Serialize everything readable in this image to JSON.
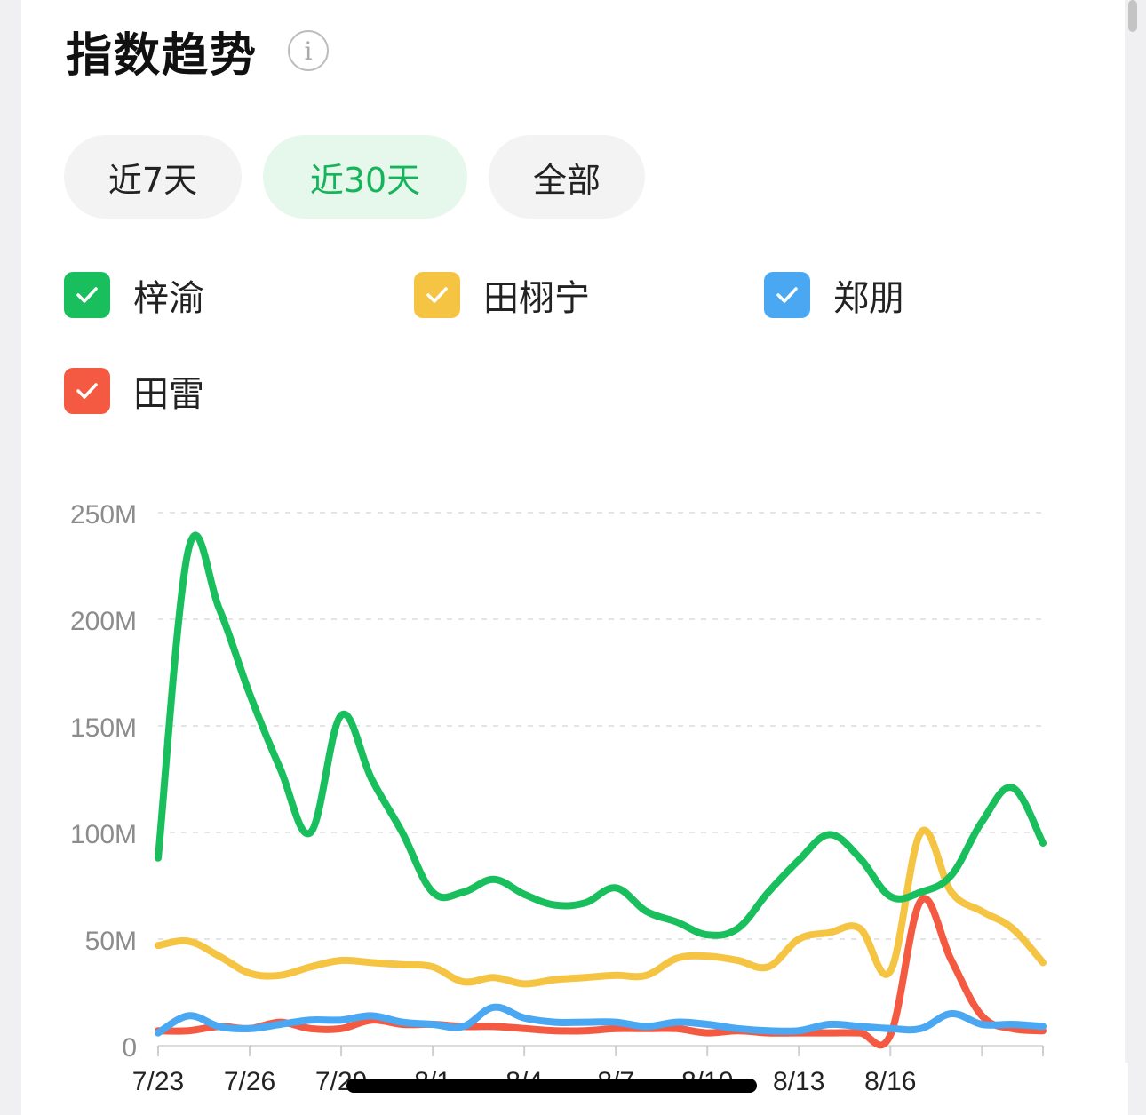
{
  "header": {
    "title": "指数趋势",
    "info_glyph": "i"
  },
  "tabs": [
    {
      "label": "近7天",
      "active": false
    },
    {
      "label": "近30天",
      "active": true
    },
    {
      "label": "全部",
      "active": false
    }
  ],
  "legend": [
    {
      "name": "梓渝",
      "color": "#19bf5c",
      "checked": true
    },
    {
      "name": "田栩宁",
      "color": "#f5c443",
      "checked": true
    },
    {
      "name": "郑朋",
      "color": "#4aa8f3",
      "checked": true
    },
    {
      "name": "田雷",
      "color": "#f45a42",
      "checked": true
    }
  ],
  "chart_data": {
    "type": "line",
    "title": "",
    "xlabel": "",
    "ylabel": "",
    "ylim": [
      0,
      250000000
    ],
    "y_ticks": [
      "0",
      "50M",
      "100M",
      "150M",
      "200M",
      "250M"
    ],
    "x_ticks": [
      "7/23",
      "7/26",
      "7/29",
      "8/1",
      "8/4",
      "8/7",
      "8/10",
      "8/13",
      "8/16"
    ],
    "x": [
      "7/23",
      "7/24",
      "7/25",
      "7/26",
      "7/27",
      "7/28",
      "7/29",
      "7/30",
      "7/31",
      "8/1",
      "8/2",
      "8/3",
      "8/4",
      "8/5",
      "8/6",
      "8/7",
      "8/8",
      "8/9",
      "8/10",
      "8/11",
      "8/12",
      "8/13",
      "8/14",
      "8/15",
      "8/16",
      "8/17",
      "8/18",
      "8/19",
      "8/20",
      "8/21"
    ],
    "grid": true,
    "series": [
      {
        "name": "梓渝",
        "color": "#19bf5c",
        "values": [
          88000000,
          233000000,
          205000000,
          165000000,
          130000000,
          100000000,
          155000000,
          125000000,
          100000000,
          72000000,
          72000000,
          78000000,
          71000000,
          66000000,
          67000000,
          74000000,
          63000000,
          58000000,
          52000000,
          55000000,
          72000000,
          87000000,
          99000000,
          88000000,
          70000000,
          72000000,
          80000000,
          105000000,
          121000000,
          95000000
        ]
      },
      {
        "name": "田栩宁",
        "color": "#f5c443",
        "values": [
          47000000,
          49000000,
          42000000,
          34000000,
          33000000,
          37000000,
          40000000,
          39000000,
          38000000,
          37000000,
          30000000,
          32000000,
          29000000,
          31000000,
          32000000,
          33000000,
          33000000,
          41000000,
          42000000,
          40000000,
          37000000,
          50000000,
          53000000,
          55000000,
          35000000,
          100000000,
          72000000,
          63000000,
          55000000,
          39000000
        ]
      },
      {
        "name": "郑朋",
        "color": "#4aa8f3",
        "values": [
          6000000,
          14000000,
          9000000,
          8000000,
          10000000,
          12000000,
          12000000,
          14000000,
          11000000,
          10000000,
          9000000,
          18000000,
          13000000,
          11000000,
          11000000,
          11000000,
          9000000,
          11000000,
          10000000,
          8000000,
          7000000,
          7000000,
          10000000,
          9000000,
          8000000,
          8000000,
          15000000,
          10000000,
          10000000,
          9000000
        ]
      },
      {
        "name": "田雷",
        "color": "#f45a42",
        "values": [
          7000000,
          7000000,
          9000000,
          8000000,
          11000000,
          8000000,
          8000000,
          12000000,
          10000000,
          10000000,
          9000000,
          9000000,
          8000000,
          7000000,
          7000000,
          8000000,
          8000000,
          8000000,
          6000000,
          7000000,
          6000000,
          6000000,
          6000000,
          6000000,
          5000000,
          68000000,
          40000000,
          14000000,
          8000000,
          7000000
        ]
      }
    ]
  }
}
